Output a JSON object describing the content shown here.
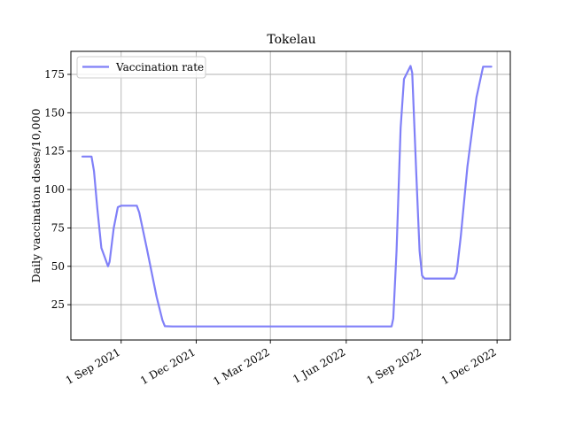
{
  "chart_data": {
    "type": "line",
    "title": "Tokelau",
    "xlabel": "",
    "ylabel": "Daily vaccination doses/10,000",
    "ylim": [
      2,
      190
    ],
    "xlim": [
      "2021-07-02",
      "2022-12-17"
    ],
    "y_ticks": [
      25,
      50,
      75,
      100,
      125,
      150,
      175
    ],
    "y_tick_labels": [
      "25",
      "50",
      "75",
      "100",
      "125",
      "150",
      "175"
    ],
    "x_ticks": [
      "2021-09-01",
      "2021-12-01",
      "2022-03-01",
      "2022-06-01",
      "2022-09-01",
      "2022-12-01"
    ],
    "x_tick_labels": [
      "1 Sep 2021",
      "1 Dec 2021",
      "1 Mar 2022",
      "1 Jun 2022",
      "1 Sep 2022",
      "1 Dec 2022"
    ],
    "grid": true,
    "legend": {
      "position": "top-left",
      "entries": [
        "Vaccination rate"
      ]
    },
    "colors": {
      "series": "#8080f8",
      "grid": "#b0b0b0",
      "axis": "#000000"
    },
    "series": [
      {
        "name": "Vaccination rate",
        "points": [
          [
            "2021-07-16",
            121.5
          ],
          [
            "2021-07-27",
            121.5
          ],
          [
            "2021-07-30",
            112
          ],
          [
            "2021-08-03",
            88
          ],
          [
            "2021-08-08",
            62
          ],
          [
            "2021-08-12",
            56
          ],
          [
            "2021-08-16",
            50
          ],
          [
            "2021-08-18",
            53
          ],
          [
            "2021-08-23",
            75
          ],
          [
            "2021-08-28",
            88.5
          ],
          [
            "2021-09-01",
            89.5
          ],
          [
            "2021-09-20",
            89.5
          ],
          [
            "2021-09-23",
            85
          ],
          [
            "2021-10-02",
            62
          ],
          [
            "2021-10-14",
            30
          ],
          [
            "2021-10-21",
            15
          ],
          [
            "2021-10-24",
            11
          ],
          [
            "2021-11-02",
            10.8
          ],
          [
            "2022-07-26",
            10.8
          ],
          [
            "2022-07-28",
            16
          ],
          [
            "2022-08-01",
            60
          ],
          [
            "2022-08-06",
            140
          ],
          [
            "2022-08-10",
            172
          ],
          [
            "2022-08-18",
            180.5
          ],
          [
            "2022-08-20",
            176
          ],
          [
            "2022-08-25",
            110
          ],
          [
            "2022-08-29",
            60
          ],
          [
            "2022-09-01",
            44
          ],
          [
            "2022-09-04",
            42
          ],
          [
            "2022-10-10",
            42
          ],
          [
            "2022-10-13",
            46
          ],
          [
            "2022-10-18",
            70
          ],
          [
            "2022-10-26",
            115
          ],
          [
            "2022-11-06",
            160
          ],
          [
            "2022-11-14",
            180
          ],
          [
            "2022-11-24",
            180
          ]
        ]
      }
    ]
  }
}
